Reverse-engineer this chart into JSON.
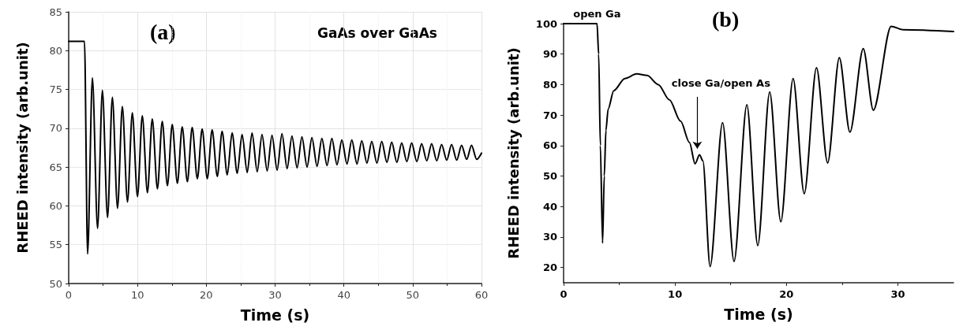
{
  "chart_data": [
    {
      "type": "line",
      "xlabel": "Time (s)",
      "ylabel": "RHEED intensity (arb.unit)",
      "annotations": [
        "(a)",
        "GaAs over GaAs"
      ],
      "xlim": [
        0,
        60
      ],
      "xticks": [
        0,
        10,
        20,
        30,
        40,
        50,
        60
      ],
      "ylim": [
        50,
        85
      ],
      "yticks": [
        50,
        55,
        60,
        65,
        70,
        75,
        80,
        85
      ],
      "grid": true,
      "marker": "none",
      "line_style": "solid",
      "series": [
        {
          "color": "#000000",
          "x": [
            0,
            2.3,
            2.75,
            3.45,
            4.2,
            4.9,
            5.65,
            6.35,
            7.1,
            7.8,
            8.55,
            9.25,
            10.0,
            10.7,
            11.45,
            12.15,
            12.9,
            13.6,
            14.35,
            15.05,
            15.8,
            16.5,
            17.25,
            17.95,
            18.7,
            19.4,
            20.15,
            20.85,
            21.6,
            22.3,
            23.05,
            23.75,
            24.5,
            25.2,
            25.95,
            26.65,
            27.4,
            28.1,
            28.85,
            29.55,
            30.3,
            31.0,
            31.75,
            32.45,
            33.2,
            33.9,
            34.65,
            35.35,
            36.1,
            36.8,
            37.55,
            38.25,
            39.0,
            39.7,
            40.45,
            41.15,
            41.9,
            42.6,
            43.35,
            44.05,
            44.8,
            45.5,
            46.25,
            46.95,
            47.7,
            48.4,
            49.15,
            49.85,
            50.6,
            51.3,
            52.05,
            52.75,
            53.5,
            54.2,
            54.95,
            55.65,
            56.4,
            57.1,
            57.85,
            58.55,
            59.3,
            60
          ],
          "values": [
            81.2,
            81.2,
            53.8,
            76.5,
            57.1,
            74.9,
            58.5,
            74.0,
            59.7,
            72.8,
            60.5,
            72.0,
            61.2,
            71.6,
            61.7,
            71.2,
            62.2,
            70.9,
            62.6,
            70.5,
            62.9,
            70.2,
            63.1,
            70.1,
            63.5,
            69.9,
            63.5,
            69.8,
            63.8,
            69.6,
            64.0,
            69.4,
            64.2,
            69.2,
            64.3,
            69.4,
            64.4,
            69.2,
            64.5,
            69.1,
            64.6,
            69.3,
            64.8,
            69.0,
            64.9,
            68.9,
            65.0,
            68.8,
            65.1,
            68.7,
            65.2,
            68.7,
            65.3,
            68.5,
            65.4,
            68.5,
            65.4,
            68.4,
            65.5,
            68.3,
            65.5,
            68.3,
            65.6,
            68.2,
            65.6,
            68.1,
            65.7,
            68.1,
            65.7,
            68.0,
            65.8,
            68.0,
            65.8,
            67.9,
            65.9,
            67.9,
            65.9,
            67.8,
            66.0,
            67.8,
            66.0,
            66.8
          ]
        }
      ]
    },
    {
      "type": "line",
      "xlabel": "Time (s)",
      "ylabel": "RHEED intensity (arb.unit)",
      "annotations": [
        "(b)",
        {
          "text": "open Ga",
          "x": 3,
          "y": 100
        },
        {
          "text": "close Ga/open As",
          "x": 12,
          "y": 57
        }
      ],
      "xlim": [
        0,
        35
      ],
      "xticks": [
        0,
        10,
        20,
        30
      ],
      "ylim": [
        15,
        100
      ],
      "yticks": [
        20,
        30,
        40,
        50,
        60,
        70,
        80,
        90,
        100
      ],
      "grid": false,
      "marker": "none",
      "line_style": "solid",
      "series": [
        {
          "color": "#000000",
          "x": [
            0,
            3.0,
            3.15,
            3.3,
            3.5,
            3.65,
            3.8,
            4.0,
            4.5,
            5.5,
            6.55,
            7.5,
            8.5,
            9.5,
            10.5,
            11.3,
            11.8,
            12.2,
            12.5,
            13.15,
            14.27,
            15.3,
            16.45,
            17.43,
            18.5,
            19.5,
            20.6,
            21.6,
            22.7,
            23.7,
            24.75,
            25.7,
            26.9,
            27.8,
            29.4,
            30.5,
            35
          ],
          "values": [
            100,
            100,
            90,
            60,
            28,
            50,
            65,
            72,
            78,
            82,
            83.5,
            83,
            80,
            75,
            68,
            61,
            54,
            57,
            55,
            20.3,
            67.5,
            22,
            73.4,
            27.2,
            77.6,
            35,
            82,
            44.2,
            85.5,
            54.3,
            88.8,
            64.4,
            91.8,
            71.6,
            99.1,
            98,
            97.4
          ]
        }
      ]
    }
  ]
}
